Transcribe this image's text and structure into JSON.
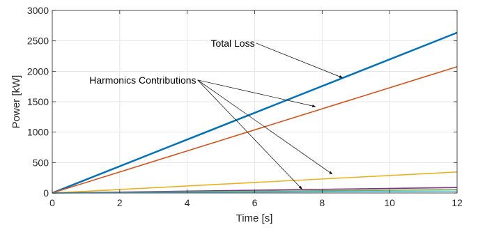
{
  "chart_data": {
    "type": "line",
    "title": "",
    "xlabel": "Time [s]",
    "ylabel": "Power [kW]",
    "xlim": [
      0,
      12
    ],
    "ylim": [
      0,
      3000
    ],
    "xticks": [
      0,
      2,
      4,
      6,
      8,
      10,
      12
    ],
    "yticks": [
      0,
      500,
      1000,
      1500,
      2000,
      2500,
      3000
    ],
    "grid": true,
    "x": [
      0,
      12
    ],
    "series": [
      {
        "color": "#0072BD",
        "values": [
          0,
          2635
        ]
      },
      {
        "color": "#D95319",
        "values": [
          0,
          2075
        ]
      },
      {
        "color": "#EDB120",
        "values": [
          0,
          345
        ]
      },
      {
        "color": "#7E2F8E",
        "values": [
          0,
          90
        ]
      },
      {
        "color": "#77AC30",
        "values": [
          0,
          55
        ]
      },
      {
        "color": "#4DBEEE",
        "values": [
          0,
          30
        ]
      }
    ],
    "annotations": [
      {
        "text": "Total Loss",
        "label_at": [
          4.7,
          2405
        ],
        "arrows_to": [
          [
            8.6,
            1895
          ]
        ]
      },
      {
        "text": "Harmonics Contributions",
        "label_at": [
          1.1,
          1800
        ],
        "arrows_to": [
          [
            7.8,
            1420
          ],
          [
            8.3,
            310
          ],
          [
            7.4,
            65
          ]
        ]
      }
    ]
  }
}
